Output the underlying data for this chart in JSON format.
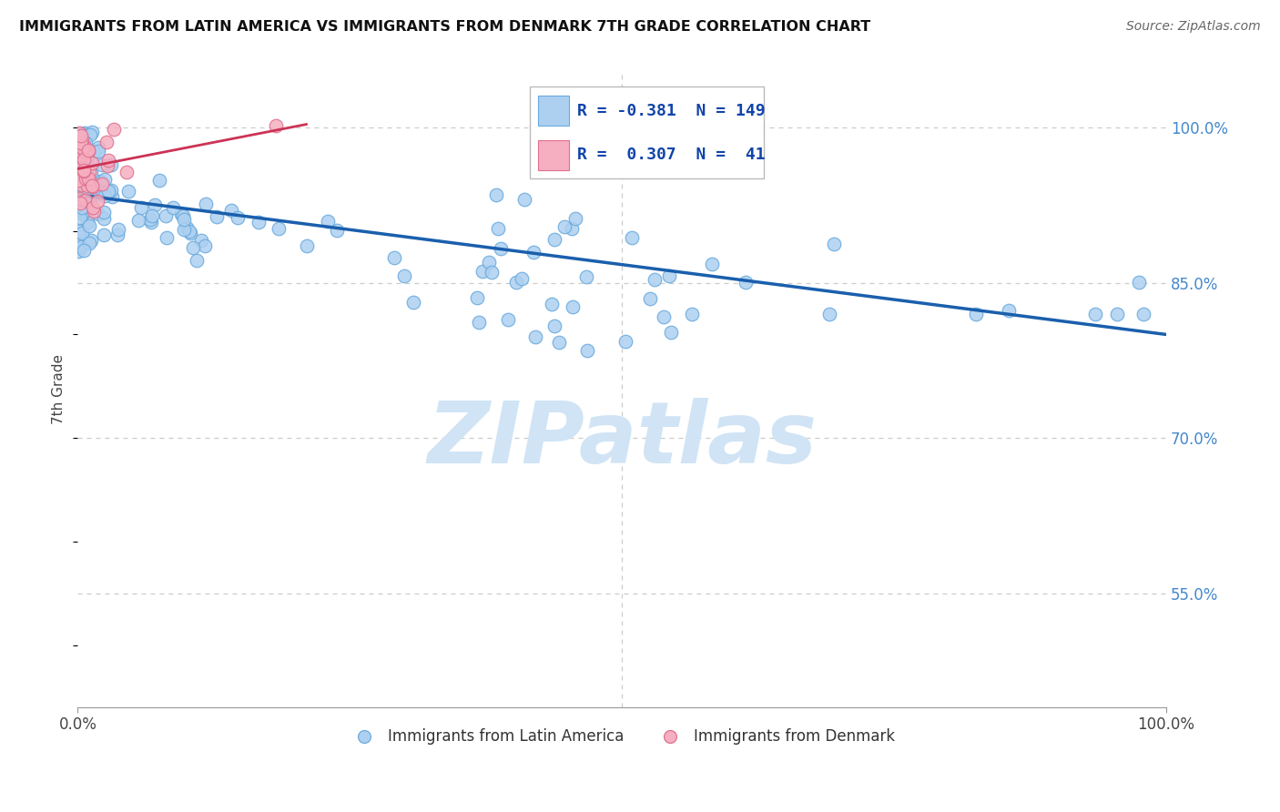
{
  "title": "IMMIGRANTS FROM LATIN AMERICA VS IMMIGRANTS FROM DENMARK 7TH GRADE CORRELATION CHART",
  "source": "Source: ZipAtlas.com",
  "ylabel": "7th Grade",
  "legend_blue_r": "-0.381",
  "legend_blue_n": "149",
  "legend_pink_r": "0.307",
  "legend_pink_n": "41",
  "blue_color": "#add0f0",
  "blue_edge_color": "#6aaade",
  "blue_line_color": "#1a5fad",
  "pink_color": "#f5afc0",
  "pink_edge_color": "#e07090",
  "pink_line_color": "#cc3355",
  "background_color": "#ffffff",
  "grid_color": "#cccccc",
  "watermark_text": "ZIPatlas",
  "watermark_color": "#d0e4f5",
  "blue_trend_x0": 0.0,
  "blue_trend_x1": 1.0,
  "blue_trend_y0": 0.935,
  "blue_trend_y1": 0.8,
  "pink_trend_x0": 0.0,
  "pink_trend_x1": 0.21,
  "pink_trend_y0": 0.96,
  "pink_trend_y1": 1.003,
  "xlim_min": 0.0,
  "xlim_max": 1.0,
  "ylim_min": 0.44,
  "ylim_max": 1.055,
  "ytick_vals": [
    1.0,
    0.85,
    0.7,
    0.55
  ],
  "ytick_labels": [
    "100.0%",
    "85.0%",
    "70.0%",
    "55.0%"
  ],
  "xtick_vals": [
    0.0,
    1.0
  ],
  "xtick_labels": [
    "0.0%",
    "100.0%"
  ],
  "legend_bottom": [
    "Immigrants from Latin America",
    "Immigrants from Denmark"
  ],
  "dpi": 100,
  "figsize": [
    14.06,
    8.92
  ]
}
